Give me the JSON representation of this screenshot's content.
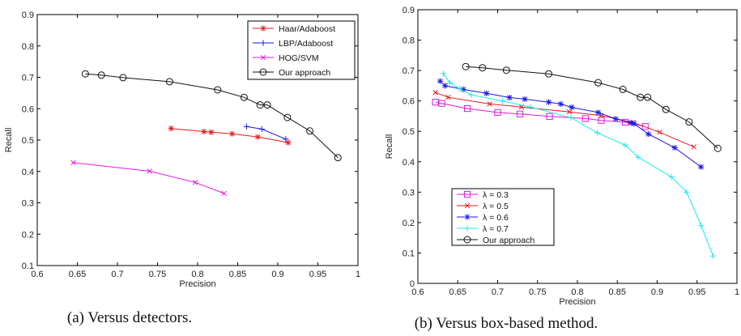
{
  "chart_data": [
    {
      "type": "line",
      "caption": "(a) Versus detectors.",
      "xlabel": "Precision",
      "ylabel": "Recall",
      "xlim": [
        0.6,
        1.0
      ],
      "ylim": [
        0.1,
        0.9
      ],
      "xticks": [
        "0.6",
        "0.65",
        "0.7",
        "0.75",
        "0.8",
        "0.85",
        "0.9",
        "0.95",
        "1"
      ],
      "yticks": [
        "0.1",
        "0.2",
        "0.3",
        "0.4",
        "0.5",
        "0.6",
        "0.7",
        "0.8",
        "0.9"
      ],
      "grid": false,
      "legend_position": "top-right",
      "series": [
        {
          "name": "Haar/Adaboost",
          "color": "#e8181c",
          "marker": "star",
          "x": [
            0.767,
            0.808,
            0.817,
            0.843,
            0.875,
            0.913
          ],
          "y": [
            0.537,
            0.527,
            0.525,
            0.52,
            0.51,
            0.492
          ]
        },
        {
          "name": "LBP/Adaboost",
          "color": "#1818e8",
          "marker": "plus",
          "x": [
            0.861,
            0.88,
            0.91
          ],
          "y": [
            0.543,
            0.535,
            0.503
          ]
        },
        {
          "name": "HOG/SVM",
          "color": "#e018e0",
          "marker": "x",
          "x": [
            0.645,
            0.74,
            0.797,
            0.833
          ],
          "y": [
            0.428,
            0.401,
            0.365,
            0.33
          ]
        },
        {
          "name": "Our approach",
          "color": "#111111",
          "marker": "circle",
          "x": [
            0.66,
            0.68,
            0.707,
            0.765,
            0.825,
            0.858,
            0.878,
            0.887,
            0.912,
            0.94,
            0.975
          ],
          "y": [
            0.711,
            0.707,
            0.699,
            0.686,
            0.66,
            0.636,
            0.612,
            0.612,
            0.572,
            0.529,
            0.444
          ]
        }
      ]
    },
    {
      "type": "line",
      "caption": "(b) Versus box-based method.",
      "xlabel": "Precision",
      "ylabel": "Recall",
      "xlim": [
        0.6,
        1.0
      ],
      "ylim": [
        0.0,
        0.9
      ],
      "xticks": [
        "0.6",
        "0.65",
        "0.7",
        "0.75",
        "0.8",
        "0.85",
        "0.9",
        "0.95",
        "1"
      ],
      "yticks": [
        "0",
        "0.1",
        "0.2",
        "0.3",
        "0.4",
        "0.5",
        "0.6",
        "0.7",
        "0.8",
        "0.9"
      ],
      "grid": false,
      "legend_position": "bottom-left",
      "series": [
        {
          "name": "λ = 0.3",
          "color": "#e018e0",
          "marker": "square",
          "x": [
            0.622,
            0.63,
            0.662,
            0.7,
            0.728,
            0.765,
            0.81,
            0.83,
            0.86,
            0.885
          ],
          "y": [
            0.596,
            0.592,
            0.575,
            0.562,
            0.557,
            0.549,
            0.542,
            0.536,
            0.53,
            0.516
          ]
        },
        {
          "name": "λ = 0.5",
          "color": "#e8181c",
          "marker": "x",
          "x": [
            0.622,
            0.638,
            0.69,
            0.73,
            0.79,
            0.83,
            0.87,
            0.903,
            0.946
          ],
          "y": [
            0.628,
            0.612,
            0.59,
            0.58,
            0.564,
            0.552,
            0.529,
            0.497,
            0.449
          ]
        },
        {
          "name": "λ = 0.6",
          "color": "#1818e8",
          "marker": "star",
          "x": [
            0.628,
            0.634,
            0.657,
            0.686,
            0.715,
            0.734,
            0.764,
            0.779,
            0.793,
            0.826,
            0.848,
            0.867,
            0.871,
            0.889,
            0.922,
            0.955
          ],
          "y": [
            0.665,
            0.65,
            0.638,
            0.625,
            0.611,
            0.606,
            0.596,
            0.59,
            0.579,
            0.562,
            0.541,
            0.528,
            0.525,
            0.491,
            0.446,
            0.383
          ]
        },
        {
          "name": "λ = 0.7",
          "color": "#18e8f0",
          "marker": "plus",
          "x": [
            0.632,
            0.64,
            0.652,
            0.667,
            0.706,
            0.741,
            0.792,
            0.825,
            0.86,
            0.876,
            0.918,
            0.937,
            0.955,
            0.97
          ],
          "y": [
            0.69,
            0.66,
            0.64,
            0.62,
            0.6,
            0.58,
            0.545,
            0.495,
            0.455,
            0.415,
            0.35,
            0.3,
            0.19,
            0.09
          ]
        },
        {
          "name": "Our approach",
          "color": "#111111",
          "marker": "circle",
          "x": [
            0.66,
            0.681,
            0.711,
            0.764,
            0.826,
            0.857,
            0.879,
            0.888,
            0.911,
            0.94,
            0.976
          ],
          "y": [
            0.713,
            0.709,
            0.701,
            0.689,
            0.66,
            0.638,
            0.612,
            0.612,
            0.572,
            0.531,
            0.444
          ]
        }
      ]
    }
  ]
}
